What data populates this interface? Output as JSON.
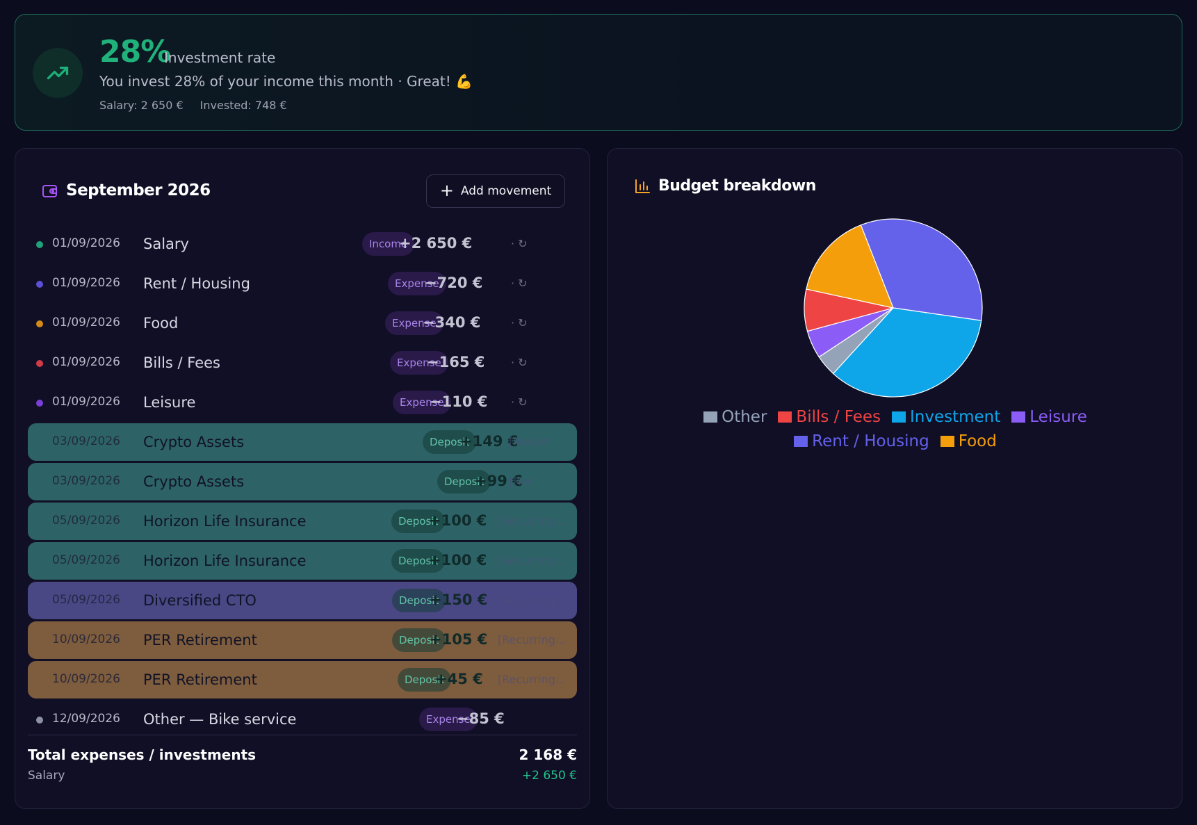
{
  "banner": {
    "rate": "28%",
    "rate_label": "Investment rate",
    "message": "You invest 28% of your income this month · Great! 💪",
    "salary": "Salary: 2 650 €",
    "invested": "Invested: 748 €",
    "icon": "trending-up-icon"
  },
  "left": {
    "title": "September 2026",
    "title_icon": "wallet-icon",
    "add_label": "Add movement",
    "rows": [
      {
        "date": "01/09/2026",
        "name": "Salary",
        "badge": "Income",
        "amount": "+2 650 €",
        "recur": "· ↻",
        "dot": "#1fa27a"
      },
      {
        "date": "01/09/2026",
        "name": "Rent / Housing",
        "badge": "Expense",
        "amount": "−720 €",
        "recur": "· ↻",
        "dot": "#5b4fd6"
      },
      {
        "date": "01/09/2026",
        "name": "Food",
        "badge": "Expense",
        "amount": "−340 €",
        "recur": "· ↻",
        "dot": "#d48a17"
      },
      {
        "date": "01/09/2026",
        "name": "Bills / Fees",
        "badge": "Expense",
        "amount": "−165 €",
        "recur": "· ↻",
        "dot": "#d13a48"
      },
      {
        "date": "01/09/2026",
        "name": "Leisure",
        "badge": "Expense",
        "amount": "−110 €",
        "recur": "· ↻",
        "dot": "#7a3fd6"
      },
      {
        "date": "03/09/2026",
        "name": "Crypto Assets",
        "badge": "Deposit",
        "amount": "+149 €",
        "recur": "[Recurr"
      },
      {
        "date": "03/09/2026",
        "name": "Crypto Assets",
        "badge": "Deposit",
        "amount": "+99 €",
        "recur": "[Rec"
      },
      {
        "date": "05/09/2026",
        "name": "Horizon Life Insurance",
        "badge": "Deposit",
        "amount": "+100 €",
        "recur": "[Recurring..."
      },
      {
        "date": "05/09/2026",
        "name": "Horizon Life Insurance",
        "badge": "Deposit",
        "amount": "+100 €",
        "recur": "[Recurring..."
      },
      {
        "date": "05/09/2026",
        "name": "Diversified CTO",
        "badge": "Deposit",
        "amount": "+150 €",
        "recur": "[Recurring..."
      },
      {
        "date": "10/09/2026",
        "name": "PER Retirement",
        "badge": "Deposit",
        "amount": "+105 €",
        "recur": "[Recurring..."
      },
      {
        "date": "10/09/2026",
        "name": "PER Retirement",
        "badge": "Deposit",
        "amount": "+45 €",
        "recur": "[Recurring..."
      },
      {
        "date": "12/09/2026",
        "name": "Other — Bike service",
        "badge": "Expense",
        "amount": "−85 €",
        "recur": "",
        "dot": "#8e90a3"
      }
    ],
    "total_label": "Total expenses / investments",
    "total_value": "2 168 €",
    "salary_label": "Salary",
    "salary_value": "+2 650 €"
  },
  "right": {
    "title": "Budget breakdown",
    "title_icon": "bar-chart-icon"
  },
  "chart_data": {
    "type": "pie",
    "title": "Budget breakdown",
    "labels": [
      "Rent / Housing",
      "Investment",
      "Other",
      "Leisure",
      "Bills / Fees",
      "Food"
    ],
    "values": [
      720,
      748,
      85,
      110,
      165,
      340
    ],
    "colors": [
      "#6461ea",
      "#0ea5e9",
      "#94a3b8",
      "#8b5cf6",
      "#ef4444",
      "#f59e0b"
    ],
    "legend": [
      [
        {
          "label": "Other",
          "color": "#94a3b8"
        },
        {
          "label": "Bills / Fees",
          "color": "#ef4444"
        },
        {
          "label": "Investment",
          "color": "#0ea5e9"
        },
        {
          "label": "Leisure",
          "color": "#8b5cf6"
        }
      ],
      [
        {
          "label": "Rent / Housing",
          "color": "#6461ea"
        },
        {
          "label": "Food",
          "color": "#f59e0b"
        }
      ]
    ]
  }
}
